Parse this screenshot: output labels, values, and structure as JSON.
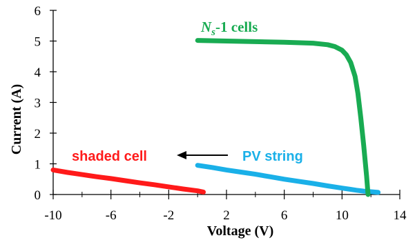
{
  "chart_data": {
    "type": "line",
    "title": "",
    "xlabel": "Voltage (V)",
    "ylabel": "Current (A)",
    "xlim": [
      -10,
      14
    ],
    "ylim": [
      0,
      6
    ],
    "xticks": [
      -10,
      -6,
      -2,
      2,
      6,
      10,
      14
    ],
    "yticks": [
      0,
      1,
      2,
      3,
      4,
      5,
      6
    ],
    "grid": false,
    "series": [
      {
        "name": "shaded cell",
        "color": "#ff1a1a",
        "x": [
          -10,
          -9,
          -8,
          -7,
          -6,
          -5,
          -4,
          -3,
          -2,
          -1,
          0,
          0.4
        ],
        "y": [
          0.8,
          0.72,
          0.65,
          0.58,
          0.52,
          0.45,
          0.38,
          0.32,
          0.25,
          0.18,
          0.12,
          0.08
        ]
      },
      {
        "name": "PV string",
        "color": "#1ab0e8",
        "x": [
          0,
          1,
          2,
          3,
          4,
          5,
          6,
          7,
          8,
          9,
          10,
          11,
          11.5,
          12,
          12.5
        ],
        "y": [
          0.95,
          0.88,
          0.8,
          0.73,
          0.66,
          0.58,
          0.5,
          0.43,
          0.36,
          0.28,
          0.21,
          0.14,
          0.11,
          0.09,
          0.07
        ]
      },
      {
        "name": "Ns-1 cells",
        "color": "#19ab52",
        "x": [
          0,
          2,
          4,
          6,
          8,
          9,
          9.5,
          10,
          10.3,
          10.6,
          10.9,
          11.1,
          11.3,
          11.5,
          11.7,
          11.8
        ],
        "y": [
          5.02,
          5.0,
          4.98,
          4.96,
          4.93,
          4.88,
          4.82,
          4.7,
          4.55,
          4.3,
          3.85,
          3.3,
          2.5,
          1.6,
          0.6,
          0.0
        ]
      }
    ],
    "annotations": {
      "shaded_label": "shaded cell",
      "string_label": "PV string",
      "ns_main": "N",
      "ns_sub": "s",
      "ns_rest": "-1 cells"
    }
  }
}
